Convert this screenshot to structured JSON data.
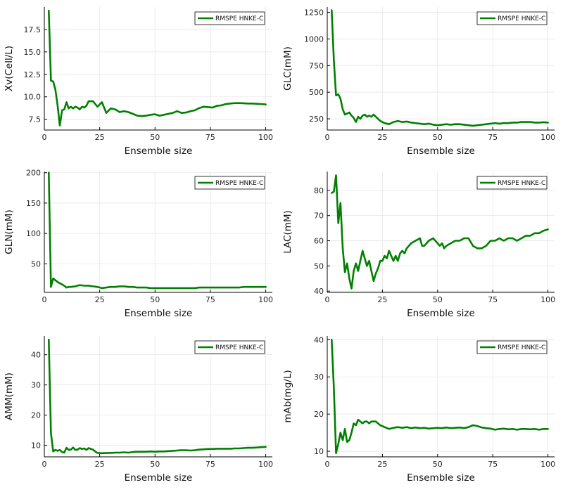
{
  "colors": {
    "series": "#008000",
    "grid": "#e6e6e6",
    "axis": "#000000"
  },
  "chart_data": [
    {
      "type": "line",
      "xlabel": "Ensemble size",
      "ylabel": "Xv(Cell/L)",
      "xlim": [
        0,
        103
      ],
      "ylim": [
        6.3,
        20.0
      ],
      "xticks": [
        0,
        25,
        50,
        75,
        100
      ],
      "yticks": [
        7.5,
        10.0,
        12.5,
        15.0,
        17.5
      ],
      "ytick_labels": [
        "7.5",
        "10.0",
        "12.5",
        "15.0",
        "17.5"
      ],
      "legend": "top-right",
      "grid": true,
      "series": [
        {
          "name": "RMSPE HNKE-C",
          "color": "#008000",
          "x": [
            2,
            3,
            4,
            5,
            6,
            7,
            8,
            9,
            10,
            11,
            12,
            13,
            14,
            15,
            16,
            17,
            18,
            19,
            20,
            22,
            24,
            26,
            28,
            30,
            32,
            34,
            36,
            38,
            40,
            42,
            44,
            46,
            48,
            50,
            52,
            54,
            56,
            58,
            60,
            62,
            64,
            66,
            68,
            70,
            72,
            74,
            76,
            78,
            80,
            82,
            84,
            86,
            88,
            90,
            92,
            94,
            96,
            98,
            100
          ],
          "y": [
            19.6,
            11.8,
            11.7,
            10.8,
            9.0,
            6.8,
            8.5,
            8.6,
            9.4,
            8.7,
            8.9,
            8.7,
            8.9,
            8.8,
            8.6,
            8.9,
            8.8,
            9.0,
            9.5,
            9.5,
            8.9,
            9.4,
            8.2,
            8.7,
            8.6,
            8.3,
            8.4,
            8.3,
            8.1,
            7.9,
            7.85,
            7.9,
            8.0,
            8.05,
            7.9,
            8.0,
            8.1,
            8.2,
            8.4,
            8.2,
            8.25,
            8.4,
            8.5,
            8.75,
            8.9,
            8.85,
            8.8,
            9.0,
            9.05,
            9.2,
            9.25,
            9.3,
            9.3,
            9.28,
            9.25,
            9.25,
            9.22,
            9.2,
            9.15
          ]
        }
      ]
    },
    {
      "type": "line",
      "xlabel": "Ensemble size",
      "ylabel": "GLC(mM)",
      "xlim": [
        0,
        103
      ],
      "ylim": [
        145,
        1300
      ],
      "xticks": [
        0,
        25,
        50,
        75,
        100
      ],
      "yticks": [
        250,
        500,
        750,
        1000,
        1250
      ],
      "ytick_labels": [
        "250",
        "500",
        "750",
        "1000",
        "1250"
      ],
      "legend": "top-right",
      "grid": true,
      "series": [
        {
          "name": "RMSPE HNKE-C",
          "color": "#008000",
          "x": [
            2,
            3,
            4,
            5,
            6,
            7,
            8,
            9,
            10,
            11,
            12,
            13,
            14,
            15,
            16,
            17,
            18,
            19,
            20,
            21,
            22,
            24,
            26,
            28,
            30,
            32,
            34,
            36,
            38,
            40,
            42,
            44,
            46,
            48,
            50,
            52,
            54,
            56,
            58,
            60,
            62,
            64,
            66,
            68,
            70,
            72,
            74,
            76,
            78,
            80,
            82,
            84,
            86,
            88,
            90,
            92,
            94,
            96,
            98,
            100
          ],
          "y": [
            1270,
            800,
            470,
            480,
            440,
            340,
            290,
            300,
            310,
            280,
            260,
            220,
            270,
            250,
            280,
            290,
            270,
            280,
            270,
            290,
            270,
            230,
            210,
            200,
            220,
            230,
            220,
            225,
            215,
            210,
            205,
            200,
            205,
            195,
            190,
            195,
            200,
            195,
            200,
            200,
            195,
            190,
            185,
            190,
            195,
            200,
            205,
            210,
            205,
            210,
            210,
            215,
            215,
            220,
            220,
            220,
            215,
            215,
            218,
            215
          ]
        }
      ]
    },
    {
      "type": "line",
      "xlabel": "Ensemble size",
      "ylabel": "GLN(mM)",
      "xlim": [
        0,
        103
      ],
      "ylim": [
        3,
        202
      ],
      "xticks": [
        0,
        25,
        50,
        75,
        100
      ],
      "yticks": [
        50,
        100,
        150,
        200
      ],
      "ytick_labels": [
        "50",
        "100",
        "150",
        "200"
      ],
      "legend": "top-right",
      "grid": true,
      "series": [
        {
          "name": "RMSPE HNKE-C",
          "color": "#008000",
          "x": [
            2,
            3,
            4,
            5,
            6,
            7,
            8,
            9,
            10,
            11,
            12,
            14,
            16,
            18,
            20,
            22,
            24,
            26,
            28,
            30,
            32,
            34,
            36,
            38,
            40,
            42,
            44,
            46,
            48,
            50,
            52,
            54,
            56,
            58,
            60,
            62,
            64,
            66,
            68,
            70,
            72,
            74,
            76,
            78,
            80,
            82,
            84,
            86,
            88,
            90,
            92,
            94,
            96,
            98,
            100
          ],
          "y": [
            200,
            12,
            26,
            23,
            20,
            18,
            16,
            14,
            11,
            12,
            12,
            13,
            15,
            14,
            14,
            13,
            12,
            10,
            11,
            12,
            12,
            13,
            13,
            12,
            12,
            11,
            11,
            11,
            10,
            10,
            10,
            10,
            10,
            10,
            10,
            10,
            10,
            10,
            10,
            11,
            11,
            11,
            11,
            11,
            11,
            11,
            11,
            11,
            11,
            12,
            12,
            12,
            12,
            12,
            12
          ]
        }
      ]
    },
    {
      "type": "line",
      "xlabel": "Ensemble size",
      "ylabel": "LAC(mM)",
      "xlim": [
        0,
        103
      ],
      "ylim": [
        39.5,
        87.5
      ],
      "xticks": [
        0,
        25,
        50,
        75,
        100
      ],
      "yticks": [
        40,
        50,
        60,
        70,
        80
      ],
      "ytick_labels": [
        "40",
        "50",
        "60",
        "70",
        "80"
      ],
      "legend": "top-right",
      "grid": true,
      "series": [
        {
          "name": "RMSPE HNKE-C",
          "color": "#008000",
          "x": [
            2,
            3,
            4,
            5,
            6,
            7,
            8,
            9,
            10,
            11,
            12,
            13,
            14,
            15,
            16,
            17,
            18,
            19,
            20,
            21,
            22,
            23,
            24,
            25,
            26,
            27,
            28,
            29,
            30,
            31,
            32,
            33,
            34,
            35,
            36,
            38,
            40,
            42,
            43,
            44,
            46,
            48,
            50,
            51,
            52,
            53,
            54,
            56,
            58,
            60,
            62,
            64,
            66,
            68,
            70,
            72,
            74,
            76,
            78,
            80,
            82,
            84,
            86,
            88,
            90,
            92,
            94,
            96,
            98,
            100
          ],
          "y": [
            79,
            79.5,
            86,
            67,
            75,
            57,
            47.5,
            51,
            45,
            41,
            48,
            51,
            48,
            52,
            56,
            53,
            50,
            52,
            48,
            44,
            47,
            49,
            52,
            52,
            54,
            53,
            56,
            54,
            52,
            54,
            52,
            55,
            56,
            55,
            57,
            59,
            60,
            61,
            58,
            58,
            60,
            61,
            59,
            58,
            59,
            57,
            58,
            59,
            60,
            60,
            61,
            61,
            58,
            57,
            57,
            58,
            60,
            60,
            61,
            60,
            61,
            61,
            60,
            61,
            62,
            62,
            63,
            63,
            64,
            64.5
          ]
        }
      ]
    },
    {
      "type": "line",
      "xlabel": "Ensemble size",
      "ylabel": "AMM(mM)",
      "xlim": [
        0,
        103
      ],
      "ylim": [
        6.2,
        46.2
      ],
      "xticks": [
        0,
        25,
        50,
        75,
        100
      ],
      "yticks": [
        10,
        20,
        30,
        40
      ],
      "ytick_labels": [
        "10",
        "20",
        "30",
        "40"
      ],
      "legend": "top-right",
      "grid": true,
      "series": [
        {
          "name": "RMSPE HNKE-C",
          "color": "#008000",
          "x": [
            2,
            3,
            4,
            5,
            6,
            7,
            8,
            9,
            10,
            11,
            12,
            13,
            14,
            15,
            16,
            17,
            18,
            19,
            20,
            21,
            22,
            23,
            24,
            26,
            28,
            30,
            32,
            34,
            36,
            38,
            40,
            42,
            44,
            46,
            48,
            50,
            52,
            54,
            56,
            58,
            60,
            62,
            64,
            66,
            68,
            70,
            72,
            74,
            76,
            78,
            80,
            82,
            84,
            86,
            88,
            90,
            92,
            94,
            96,
            98,
            100
          ],
          "y": [
            45,
            14,
            8,
            8.5,
            8.2,
            8.5,
            7.8,
            7.6,
            9.2,
            8.5,
            8.6,
            9.3,
            8.5,
            8.6,
            9.1,
            8.8,
            9,
            8.5,
            9.1,
            8.8,
            8.6,
            8,
            7.5,
            7.4,
            7.5,
            7.5,
            7.6,
            7.6,
            7.7,
            7.6,
            7.8,
            7.9,
            7.9,
            7.9,
            8,
            7.9,
            8,
            8,
            8.1,
            8.2,
            8.3,
            8.4,
            8.4,
            8.3,
            8.4,
            8.6,
            8.7,
            8.8,
            8.8,
            8.9,
            8.9,
            8.9,
            8.9,
            9,
            9,
            9.1,
            9.2,
            9.2,
            9.3,
            9.4,
            9.5
          ]
        }
      ]
    },
    {
      "type": "line",
      "xlabel": "Ensemble size",
      "ylabel": "mAb(mg/L)",
      "xlim": [
        0,
        103
      ],
      "ylim": [
        8.5,
        41
      ],
      "xticks": [
        0,
        25,
        50,
        75,
        100
      ],
      "yticks": [
        10,
        20,
        30,
        40
      ],
      "ytick_labels": [
        "10",
        "20",
        "30",
        "40"
      ],
      "legend": "top-right",
      "grid": true,
      "series": [
        {
          "name": "RMSPE HNKE-C",
          "color": "#008000",
          "x": [
            2,
            3,
            4,
            5,
            6,
            7,
            8,
            9,
            10,
            11,
            12,
            13,
            14,
            15,
            16,
            17,
            18,
            19,
            20,
            22,
            24,
            26,
            28,
            30,
            32,
            34,
            36,
            38,
            40,
            42,
            44,
            46,
            48,
            50,
            52,
            54,
            56,
            58,
            60,
            62,
            64,
            66,
            68,
            70,
            72,
            74,
            76,
            78,
            80,
            82,
            84,
            86,
            88,
            90,
            92,
            94,
            96,
            98,
            100
          ],
          "y": [
            40,
            27,
            9.5,
            12,
            15,
            13,
            16,
            12.5,
            13,
            15,
            17.5,
            17,
            18.5,
            18,
            17.5,
            18,
            18,
            17.5,
            18,
            18,
            17,
            16.5,
            16,
            16.3,
            16.5,
            16.3,
            16.5,
            16.2,
            16.4,
            16.2,
            16.3,
            16.1,
            16.2,
            16.3,
            16.2,
            16.4,
            16.2,
            16.3,
            16.4,
            16.2,
            16.5,
            17,
            16.8,
            16.4,
            16.2,
            16.1,
            15.8,
            16,
            16.1,
            15.9,
            16,
            15.8,
            16,
            16,
            15.9,
            16,
            15.8,
            16,
            16
          ]
        }
      ]
    }
  ]
}
